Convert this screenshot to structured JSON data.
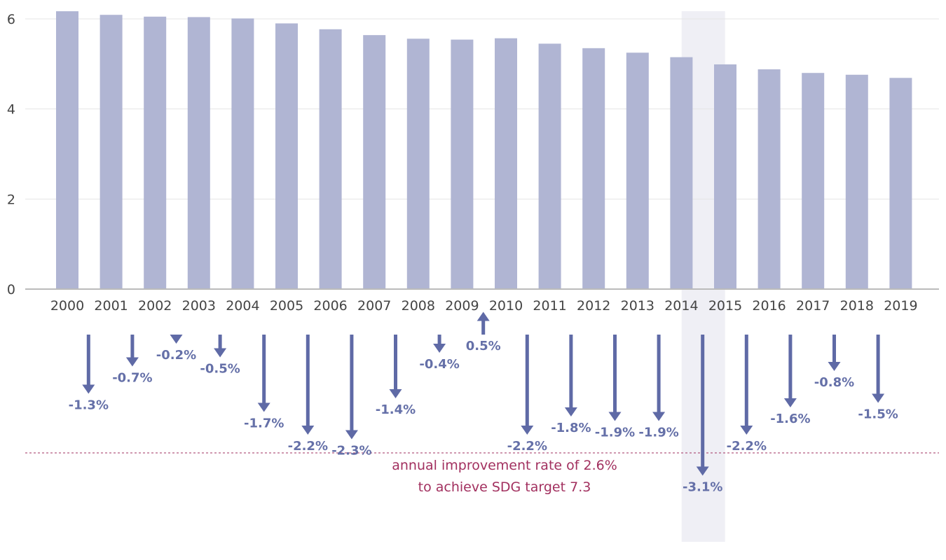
{
  "chart_data": {
    "type": "bar",
    "categories": [
      "2000",
      "2001",
      "2002",
      "2003",
      "2004",
      "2005",
      "2006",
      "2007",
      "2008",
      "2009",
      "2010",
      "2011",
      "2012",
      "2013",
      "2014",
      "2015",
      "2016",
      "2017",
      "2018",
      "2019"
    ],
    "values": [
      6.17,
      6.09,
      6.05,
      6.04,
      6.01,
      5.9,
      5.77,
      5.64,
      5.56,
      5.54,
      5.57,
      5.45,
      5.35,
      5.25,
      5.15,
      4.99,
      4.88,
      4.8,
      4.76,
      4.69
    ],
    "ylim": [
      0,
      6
    ],
    "yticks": [
      0,
      2,
      4,
      6
    ],
    "grid": true,
    "highlight_category": "2015",
    "improvement_rates": [
      {
        "between": [
          "2000",
          "2001"
        ],
        "value": -1.3,
        "label": "-1.3%"
      },
      {
        "between": [
          "2001",
          "2002"
        ],
        "value": -0.7,
        "label": "-0.7%"
      },
      {
        "between": [
          "2002",
          "2003"
        ],
        "value": -0.2,
        "label": "-0.2%"
      },
      {
        "between": [
          "2003",
          "2004"
        ],
        "value": -0.5,
        "label": "-0.5%"
      },
      {
        "between": [
          "2004",
          "2005"
        ],
        "value": -1.7,
        "label": "-1.7%"
      },
      {
        "between": [
          "2005",
          "2006"
        ],
        "value": -2.2,
        "label": "-2.2%"
      },
      {
        "between": [
          "2006",
          "2007"
        ],
        "value": -2.3,
        "label": "-2.3%"
      },
      {
        "between": [
          "2007",
          "2008"
        ],
        "value": -1.4,
        "label": "-1.4%"
      },
      {
        "between": [
          "2008",
          "2009"
        ],
        "value": -0.4,
        "label": "-0.4%"
      },
      {
        "between": [
          "2009",
          "2010"
        ],
        "value": 0.5,
        "label": "0.5%"
      },
      {
        "between": [
          "2010",
          "2011"
        ],
        "value": -2.2,
        "label": "-2.2%"
      },
      {
        "between": [
          "2011",
          "2012"
        ],
        "value": -1.8,
        "label": "-1.8%"
      },
      {
        "between": [
          "2012",
          "2013"
        ],
        "value": -1.9,
        "label": "-1.9%"
      },
      {
        "between": [
          "2013",
          "2014"
        ],
        "value": -1.9,
        "label": "-1.9%"
      },
      {
        "between": [
          "2014",
          "2015"
        ],
        "value": -3.1,
        "label": "-3.1%"
      },
      {
        "between": [
          "2015",
          "2016"
        ],
        "value": -2.2,
        "label": "-2.2%"
      },
      {
        "between": [
          "2016",
          "2017"
        ],
        "value": -1.6,
        "label": "-1.6%"
      },
      {
        "between": [
          "2017",
          "2018"
        ],
        "value": -0.8,
        "label": "-0.8%"
      },
      {
        "between": [
          "2018",
          "2019"
        ],
        "value": -1.5,
        "label": "-1.5%"
      }
    ],
    "target_rate": {
      "value": -2.6,
      "label_line1": "annual improvement rate of 2.6%",
      "label_line2": "to achieve SDG target 7.3"
    },
    "colors": {
      "bar": "#b0b5d3",
      "arrow": "#5f6aa6",
      "highlight": "#efeff5",
      "target": "#a2305f",
      "grid": "#e5e5e5",
      "axis": "#bbbbbb"
    }
  }
}
